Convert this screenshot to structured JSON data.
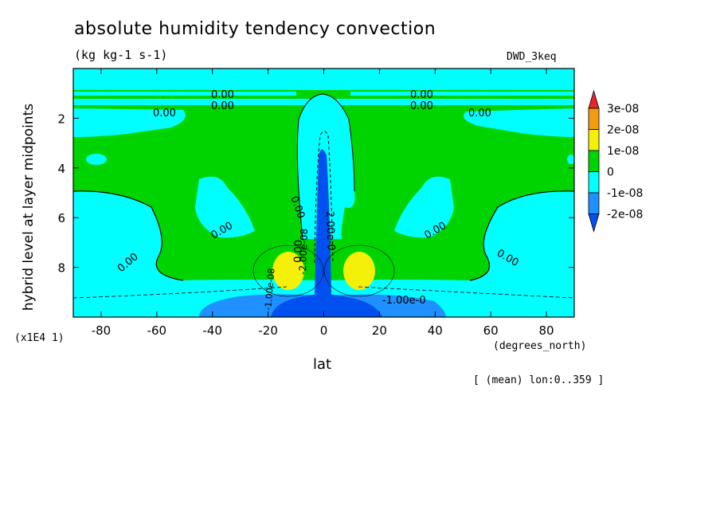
{
  "chart_data": {
    "type": "heatmap",
    "title": "absolute humidity tendency convection",
    "units": "(kg kg-1 s-1)",
    "source": "DWD_3keq",
    "xlabel": "lat",
    "x_units": "(degrees_north)",
    "ylabel": "hybrid level at layer midpoints",
    "y_scale_note": "(x1E4 1)",
    "footnote": "[ (mean) lon:0..359 ]",
    "xlim": [
      -90,
      90
    ],
    "ylim": [
      10,
      0
    ],
    "x_ticks": [
      -80,
      -60,
      -40,
      -20,
      0,
      20,
      40,
      60,
      80
    ],
    "x_tick_labels": [
      "-80",
      "-60",
      "-40",
      "-20",
      "0",
      "20",
      "40",
      "60",
      "80"
    ],
    "y_ticks": [
      2,
      4,
      6,
      8
    ],
    "y_tick_labels": [
      "2",
      "4",
      "6",
      "8"
    ],
    "colorbar": {
      "levels": [
        "3e-08",
        "2e-08",
        "1e-08",
        "0",
        "-1e-08",
        "-2e-08"
      ],
      "colors": [
        "#e8262a",
        "#f39c12",
        "#f5f00a",
        "#00d400",
        "#00ffff",
        "#1e90ff",
        "#0050f0"
      ]
    },
    "contour_labels": [
      "0.00",
      "0.00",
      "0.00",
      "0.00",
      "0.00",
      "0.00",
      "0.00",
      "0.00",
      "0.00",
      "0.00",
      "0.00",
      "0.00",
      "-2.00e-08",
      "-1.00e-08",
      "-1.00e-0",
      "2.00e-0"
    ]
  }
}
